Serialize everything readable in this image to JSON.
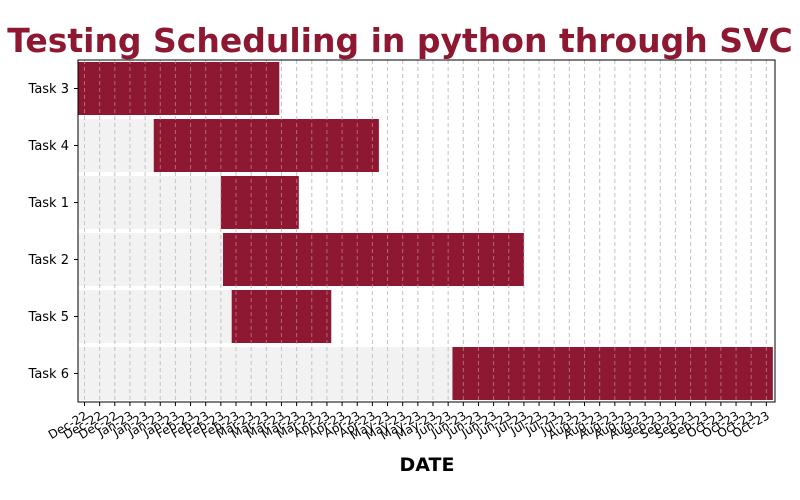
{
  "chart_data": {
    "type": "gantt",
    "title": "Testing Scheduling in python through SVC",
    "xlabel": "DATE",
    "ylabel": "",
    "xlim": [
      "2022-12-12",
      "2023-10-30"
    ],
    "grid": {
      "x": true,
      "y": false,
      "style": "dashed"
    },
    "colors": {
      "bar": "#8e1731",
      "background_bar": "#f2f2f2",
      "grid": "#aaaaaa",
      "title": "#8e1731"
    },
    "tasks": [
      {
        "name": "Task 3",
        "start": "2022-12-12",
        "end": "2023-03-15"
      },
      {
        "name": "Task 4",
        "start": "2023-01-16",
        "end": "2023-04-30"
      },
      {
        "name": "Task 1",
        "start": "2023-02-16",
        "end": "2023-03-24"
      },
      {
        "name": "Task 2",
        "start": "2023-02-17",
        "end": "2023-07-06"
      },
      {
        "name": "Task 5",
        "start": "2023-02-21",
        "end": "2023-04-08"
      },
      {
        "name": "Task 6",
        "start": "2023-06-03",
        "end": "2023-10-29"
      }
    ],
    "x_ticks": [
      {
        "date": "2022-12-15",
        "label": "Dec-22"
      },
      {
        "date": "2022-12-22",
        "label": "Dec-22"
      },
      {
        "date": "2022-12-29",
        "label": "Dec-22"
      },
      {
        "date": "2023-01-05",
        "label": "Jan-23"
      },
      {
        "date": "2023-01-12",
        "label": "Jan-23"
      },
      {
        "date": "2023-01-19",
        "label": "Jan-23"
      },
      {
        "date": "2023-01-26",
        "label": "Jan-23"
      },
      {
        "date": "2023-02-02",
        "label": "Feb-23"
      },
      {
        "date": "2023-02-09",
        "label": "Feb-23"
      },
      {
        "date": "2023-02-16",
        "label": "Feb-23"
      },
      {
        "date": "2023-02-23",
        "label": "Feb-23"
      },
      {
        "date": "2023-03-02",
        "label": "Mar-23"
      },
      {
        "date": "2023-03-09",
        "label": "Mar-23"
      },
      {
        "date": "2023-03-16",
        "label": "Mar-23"
      },
      {
        "date": "2023-03-23",
        "label": "Mar-23"
      },
      {
        "date": "2023-03-30",
        "label": "Mar-23"
      },
      {
        "date": "2023-04-06",
        "label": "Apr-23"
      },
      {
        "date": "2023-04-13",
        "label": "Apr-23"
      },
      {
        "date": "2023-04-20",
        "label": "Apr-23"
      },
      {
        "date": "2023-04-27",
        "label": "Apr-23"
      },
      {
        "date": "2023-05-04",
        "label": "May-23"
      },
      {
        "date": "2023-05-11",
        "label": "May-23"
      },
      {
        "date": "2023-05-18",
        "label": "May-23"
      },
      {
        "date": "2023-05-25",
        "label": "May-23"
      },
      {
        "date": "2023-06-01",
        "label": "Jun-23"
      },
      {
        "date": "2023-06-08",
        "label": "Jun-23"
      },
      {
        "date": "2023-06-15",
        "label": "Jun-23"
      },
      {
        "date": "2023-06-22",
        "label": "Jun-23"
      },
      {
        "date": "2023-06-29",
        "label": "Jun-23"
      },
      {
        "date": "2023-07-06",
        "label": "Jul-23"
      },
      {
        "date": "2023-07-13",
        "label": "Jul-23"
      },
      {
        "date": "2023-07-20",
        "label": "Jul-23"
      },
      {
        "date": "2023-07-27",
        "label": "Jul-23"
      },
      {
        "date": "2023-08-03",
        "label": "Aug-23"
      },
      {
        "date": "2023-08-10",
        "label": "Aug-23"
      },
      {
        "date": "2023-08-17",
        "label": "Aug-23"
      },
      {
        "date": "2023-08-24",
        "label": "Aug-23"
      },
      {
        "date": "2023-08-31",
        "label": "Aug-23"
      },
      {
        "date": "2023-09-07",
        "label": "Sep-23"
      },
      {
        "date": "2023-09-14",
        "label": "Sep-23"
      },
      {
        "date": "2023-09-21",
        "label": "Sep-23"
      },
      {
        "date": "2023-09-28",
        "label": "Sep-23"
      },
      {
        "date": "2023-10-05",
        "label": "Oct-23"
      },
      {
        "date": "2023-10-12",
        "label": "Oct-23"
      },
      {
        "date": "2023-10-19",
        "label": "Oct-23"
      },
      {
        "date": "2023-10-26",
        "label": "Oct-23"
      }
    ]
  }
}
